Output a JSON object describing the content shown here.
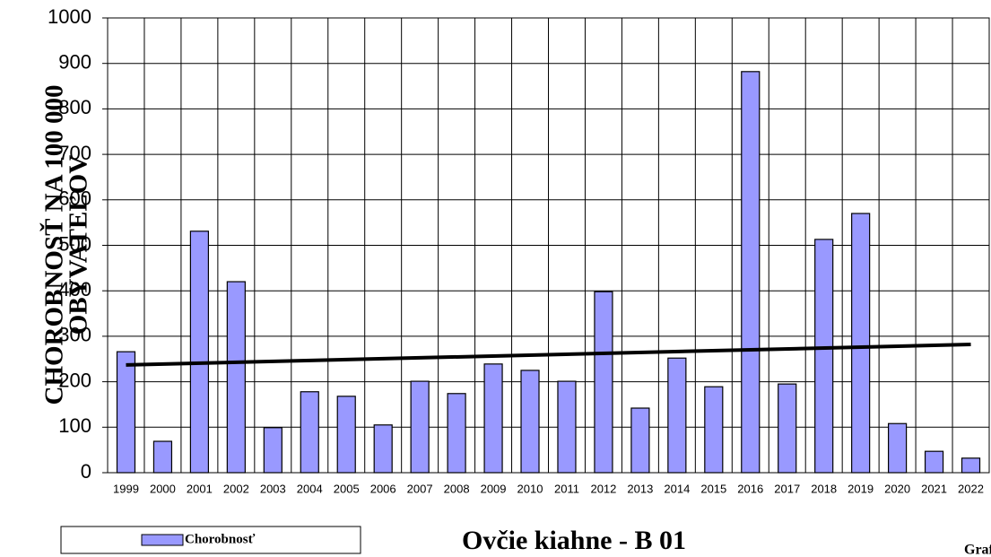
{
  "chart_data": {
    "type": "bar",
    "title": "Ovčie kiahne - B 01",
    "corner_label": "Graf",
    "ylabel": [
      "CHOROBNOSŤ NA 100 000",
      "OBYVATEĽOV"
    ],
    "categories": [
      "1999",
      "2000",
      "2001",
      "2002",
      "2003",
      "2004",
      "2005",
      "2006",
      "2007",
      "2008",
      "2009",
      "2010",
      "2011",
      "2012",
      "2013",
      "2014",
      "2015",
      "2016",
      "2017",
      "2018",
      "2019",
      "2020",
      "2021",
      "2022"
    ],
    "series": [
      {
        "name": "Chorobnosť",
        "color": "#9999ff",
        "values": [
          266,
          69,
          531,
          420,
          99,
          178,
          168,
          105,
          201,
          174,
          239,
          225,
          201,
          398,
          142,
          252,
          189,
          882,
          195,
          513,
          570,
          108,
          47,
          32
        ]
      }
    ],
    "trendline": {
      "values": [
        237,
        282
      ],
      "color": "#000000"
    },
    "ylim": [
      0,
      1000
    ],
    "yticks": [
      0,
      100,
      200,
      300,
      400,
      500,
      600,
      700,
      800,
      900,
      1000
    ],
    "grid": true
  }
}
